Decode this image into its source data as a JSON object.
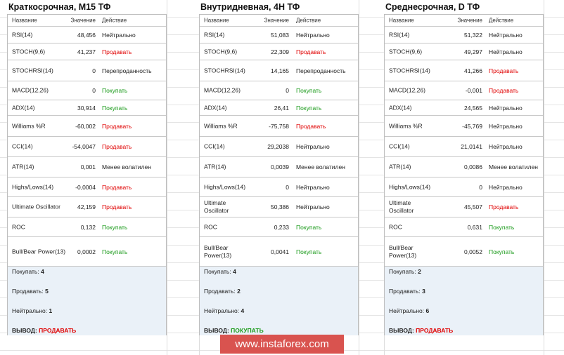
{
  "panels": [
    {
      "title": "Краткосрочная, M15 ТФ",
      "header": [
        "Название",
        "Значение",
        "Действие"
      ],
      "rows": [
        {
          "name": "RSI(14)",
          "value": "48,456",
          "action": "Нейтрально"
        },
        {
          "name": "STOCH(9,6)",
          "value": "41,237",
          "action": "Продавать",
          "color": "#e00000"
        },
        {
          "name": "STOCHRSI(14)",
          "value": "0",
          "action": "Перепроданность"
        },
        {
          "name": "MACD(12,26)",
          "value": "0",
          "action": "Покупать",
          "color": "#1a9a1a"
        },
        {
          "name": "ADX(14)",
          "value": "30,914",
          "action": "Покупать",
          "color": "#1a9a1a"
        },
        {
          "name": "Williams %R",
          "value": "-60,002",
          "action": "Продавать",
          "color": "#e00000"
        },
        {
          "name": "CCI(14)",
          "value": "-54,0047",
          "action": "Продавать",
          "color": "#e00000"
        },
        {
          "name": "ATR(14)",
          "value": "0,001",
          "action": "Менее волатилен"
        },
        {
          "name": "Highs/Lows(14)",
          "value": "-0,0004",
          "action": "Продавать",
          "color": "#e00000"
        },
        {
          "name": "Ultimate Oscillator",
          "value": "42,159",
          "action": "Продавать",
          "color": "#e00000"
        },
        {
          "name": "ROC",
          "value": "0,132",
          "action": "Покупать",
          "color": "#1a9a1a"
        },
        {
          "name": "Bull/Bear Power(13)",
          "value": "0,0002",
          "action": "Покупать",
          "color": "#1a9a1a"
        }
      ],
      "summary": [
        {
          "label": "Покупать:",
          "value": "4"
        },
        {
          "label": "Продавать:",
          "value": "5"
        },
        {
          "label": "Нейтрально:",
          "value": "1"
        },
        {
          "label": "ВЫВОД:",
          "value": "ПРОДАВАТЬ",
          "color": "#e00000"
        }
      ]
    },
    {
      "title": "Внутридневная, 4H ТФ",
      "header": [
        "Название",
        "Значение",
        "Действие"
      ],
      "rows": [
        {
          "name": "RSI(14)",
          "value": "51,083",
          "action": "Нейтрально"
        },
        {
          "name": "STOCH(9,6)",
          "value": "22,309",
          "action": "Продавать",
          "color": "#e00000"
        },
        {
          "name": "STOCHRSI(14)",
          "value": "14,165",
          "action": "Перепроданность"
        },
        {
          "name": "MACD(12,26)",
          "value": "0",
          "action": "Покупать",
          "color": "#1a9a1a"
        },
        {
          "name": "ADX(14)",
          "value": "26,41",
          "action": "Покупать",
          "color": "#1a9a1a"
        },
        {
          "name": "Williams %R",
          "value": "-75,758",
          "action": "Продавать",
          "color": "#e00000"
        },
        {
          "name": "CCI(14)",
          "value": "29,2038",
          "action": "Нейтрально"
        },
        {
          "name": "ATR(14)",
          "value": "0,0039",
          "action": "Менее волатилен"
        },
        {
          "name": "Highs/Lows(14)",
          "value": "0",
          "action": "Нейтрально"
        },
        {
          "name": "Ultimate Oscillator",
          "value": "50,386",
          "action": "Нейтрально"
        },
        {
          "name": "ROC",
          "value": "0,233",
          "action": "Покупать",
          "color": "#1a9a1a"
        },
        {
          "name": "Bull/Bear Power(13)",
          "value": "0,0041",
          "action": "Покупать",
          "color": "#1a9a1a"
        }
      ],
      "summary": [
        {
          "label": "Покупать:",
          "value": "4"
        },
        {
          "label": "Продавать:",
          "value": "2"
        },
        {
          "label": "Нейтрально:",
          "value": "4"
        },
        {
          "label": "ВЫВОД:",
          "value": "ПОКУПАТЬ",
          "color": "#1a9a1a"
        }
      ]
    },
    {
      "title": "Среднесрочная, D ТФ",
      "header": [
        "Название",
        "Значение",
        "Действие"
      ],
      "rows": [
        {
          "name": "RSI(14)",
          "value": "51,322",
          "action": "Нейтрально"
        },
        {
          "name": "STOCH(9,6)",
          "value": "49,297",
          "action": "Нейтрально"
        },
        {
          "name": "STOCHRSI(14)",
          "value": "41,266",
          "action": "Продавать",
          "color": "#e00000"
        },
        {
          "name": "MACD(12,26)",
          "value": "-0,001",
          "action": "Продавать",
          "color": "#e00000"
        },
        {
          "name": "ADX(14)",
          "value": "24,565",
          "action": "Нейтрально"
        },
        {
          "name": "Williams %R",
          "value": "-45,769",
          "action": "Нейтрально"
        },
        {
          "name": "CCI(14)",
          "value": "21,0141",
          "action": "Нейтрально"
        },
        {
          "name": "ATR(14)",
          "value": "0,0086",
          "action": "Менее волатилен"
        },
        {
          "name": "Highs/Lows(14)",
          "value": "0",
          "action": "Нейтрально"
        },
        {
          "name": "Ultimate Oscillator",
          "value": "45,507",
          "action": "Продавать",
          "color": "#e00000"
        },
        {
          "name": "ROC",
          "value": "0,631",
          "action": "Покупать",
          "color": "#1a9a1a"
        },
        {
          "name": "Bull/Bear Power(13)",
          "value": "0,0052",
          "action": "Покупать",
          "color": "#1a9a1a"
        }
      ],
      "summary": [
        {
          "label": "Покупать:",
          "value": "2"
        },
        {
          "label": "Продавать:",
          "value": "3"
        },
        {
          "label": "Нейтрально:",
          "value": "6"
        },
        {
          "label": "ВЫВОД:",
          "value": "ПРОДАВАТЬ",
          "color": "#e00000"
        }
      ]
    }
  ],
  "watermark": "www.instaforex.com"
}
